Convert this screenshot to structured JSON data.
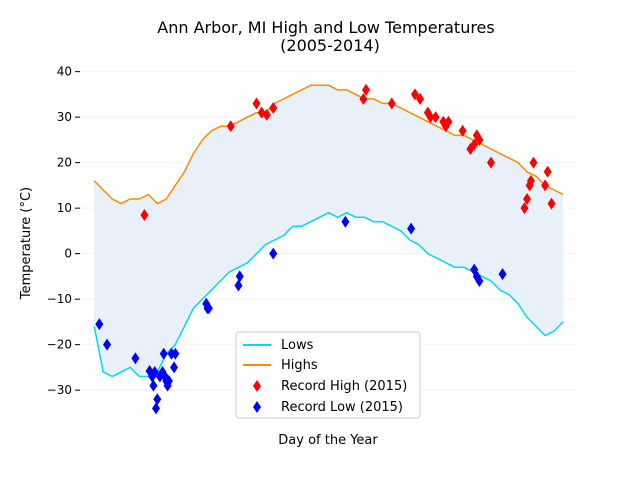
{
  "chart_data": {
    "type": "line",
    "title_line1": "Ann Arbor, MI High and Low Temperatures",
    "title_line2": "(2005-2014)",
    "xlabel": "Day of the Year",
    "ylabel": "Temperature (°C)",
    "xlim": [
      -10,
      375
    ],
    "ylim": [
      -37,
      43
    ],
    "yticks": [
      40,
      30,
      20,
      10,
      0,
      -10,
      -20,
      -30
    ],
    "ytick_labels": [
      "40",
      "30",
      "20",
      "10",
      "0",
      "−10",
      "−20",
      "−30"
    ],
    "grid": true,
    "legend_position": "lower-center",
    "colors": {
      "lows": "#00d9f2",
      "highs": "#ff8c00",
      "fill": "#e6eef8",
      "record_high": "#ff0000",
      "record_low": "#0000ff",
      "grid": "#f2f2f2"
    },
    "series": [
      {
        "name": "Lows",
        "x": [
          1,
          8,
          15,
          22,
          29,
          36,
          43,
          50,
          57,
          64,
          71,
          78,
          85,
          92,
          99,
          106,
          113,
          120,
          127,
          134,
          141,
          148,
          155,
          162,
          169,
          176,
          183,
          190,
          197,
          204,
          211,
          218,
          225,
          232,
          239,
          246,
          253,
          260,
          267,
          274,
          281,
          288,
          295,
          302,
          309,
          316,
          323,
          330,
          337,
          344,
          351,
          358,
          365
        ],
        "y": [
          -16,
          -26,
          -27,
          -26,
          -25,
          -27,
          -27,
          -26,
          -22,
          -20,
          -16,
          -12,
          -10,
          -8,
          -6,
          -4,
          -3,
          -2,
          0,
          2,
          3,
          4,
          6,
          6,
          7,
          8,
          9,
          8,
          9,
          8,
          8,
          7,
          7,
          6,
          5,
          3,
          2,
          0,
          -1,
          -2,
          -3,
          -3,
          -4,
          -5,
          -6,
          -8,
          -9,
          -11,
          -14,
          -16,
          -18,
          -17,
          -15
        ]
      },
      {
        "name": "Highs",
        "x": [
          1,
          8,
          15,
          22,
          29,
          36,
          43,
          50,
          57,
          64,
          71,
          78,
          85,
          92,
          99,
          106,
          113,
          120,
          127,
          134,
          141,
          148,
          155,
          162,
          169,
          176,
          183,
          190,
          197,
          204,
          211,
          218,
          225,
          232,
          239,
          246,
          253,
          260,
          267,
          274,
          281,
          288,
          295,
          302,
          309,
          316,
          323,
          330,
          337,
          344,
          351,
          358,
          365
        ],
        "y": [
          16,
          14,
          12,
          11,
          12,
          12,
          13,
          11,
          12,
          15,
          18,
          22,
          25,
          27,
          28,
          28,
          29,
          30,
          31,
          31,
          33,
          34,
          35,
          36,
          37,
          37,
          37,
          36,
          36,
          35,
          34,
          34,
          33,
          33,
          32,
          31,
          30,
          29,
          28,
          27,
          26,
          26,
          25,
          24,
          23,
          22,
          21,
          20,
          18,
          17,
          15,
          14,
          13
        ]
      },
      {
        "name": "Record High (2015)",
        "type": "scatter",
        "x": [
          40,
          107,
          127,
          131,
          135,
          140,
          210,
          212,
          232,
          250,
          254,
          260,
          262,
          266,
          272,
          274,
          276,
          287,
          293,
          296,
          298,
          300,
          309,
          335,
          337,
          339,
          340,
          342,
          351,
          353,
          356
        ],
        "y": [
          8.5,
          28,
          33,
          31,
          30.5,
          32,
          34,
          36,
          33,
          35,
          34,
          31,
          30,
          30,
          29,
          28,
          29,
          27,
          23,
          24,
          26,
          25,
          20,
          10,
          12,
          15,
          16,
          20,
          15,
          18,
          11
        ]
      },
      {
        "name": "Record Low (2015)",
        "type": "scatter",
        "x": [
          5,
          11,
          33,
          44,
          46,
          47,
          48,
          49,
          50,
          52,
          54,
          55,
          56,
          57,
          58,
          59,
          61,
          63,
          64,
          88,
          89,
          90,
          113,
          114,
          140,
          196,
          247,
          296,
          298,
          300,
          318
        ],
        "y": [
          -15.5,
          -20,
          -23,
          -25.8,
          -27,
          -29,
          -26,
          -34,
          -32,
          -27,
          -26,
          -22,
          -27,
          -28,
          -29,
          -28,
          -22,
          -25,
          -22,
          -11,
          -12,
          -12,
          -7,
          -5,
          0,
          7,
          5.5,
          -3.5,
          -5,
          -6,
          -4.5
        ]
      }
    ]
  }
}
